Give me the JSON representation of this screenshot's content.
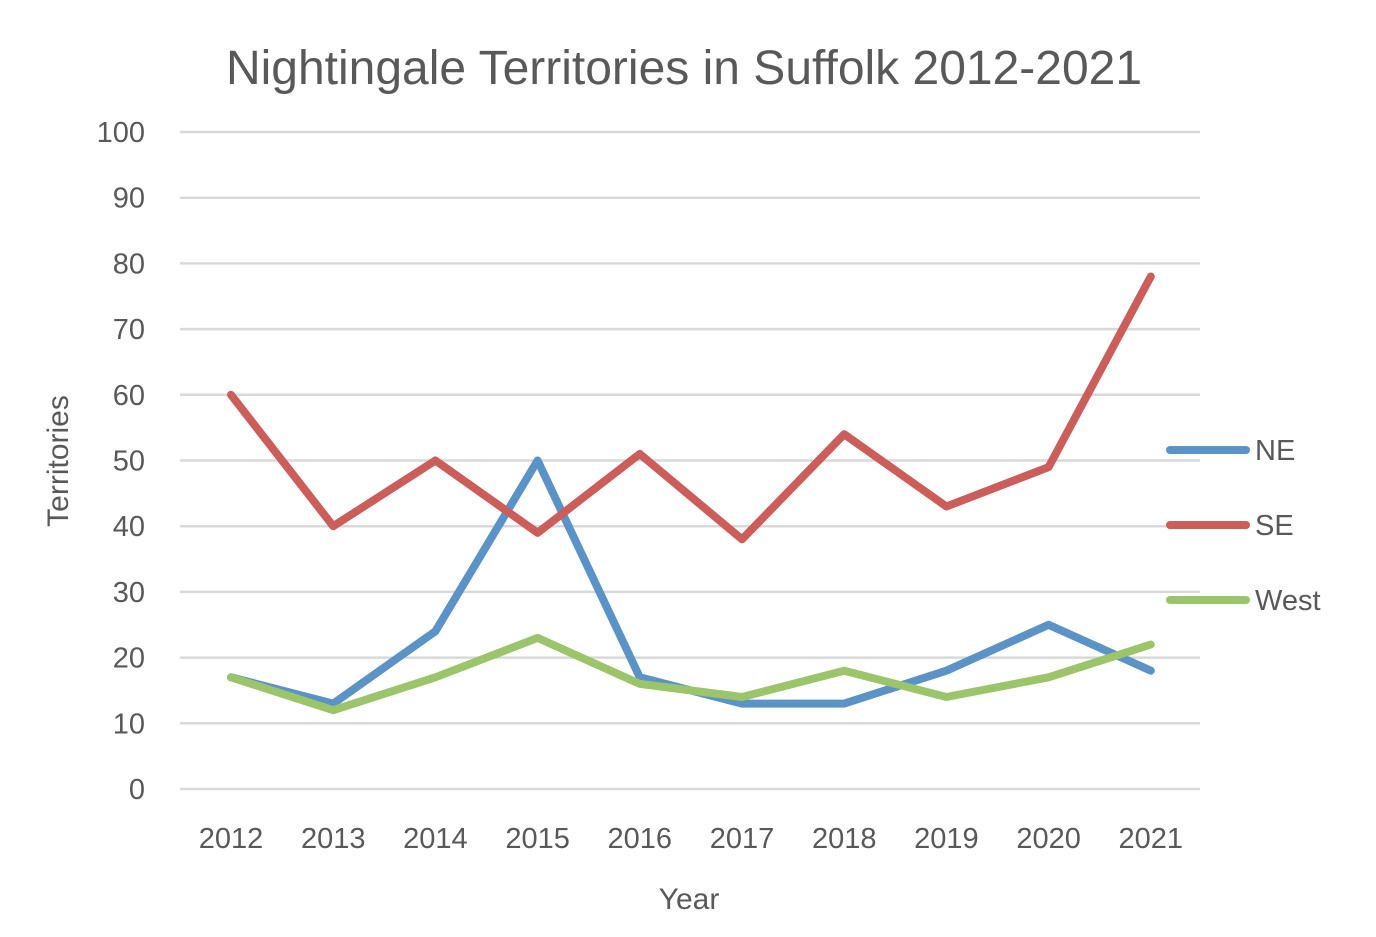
{
  "chart_data": {
    "type": "line",
    "title": "Nightingale Territories in Suffolk 2012-2021",
    "xlabel": "Year",
    "ylabel": "Territories",
    "categories": [
      "2012",
      "2013",
      "2014",
      "2015",
      "2016",
      "2017",
      "2018",
      "2019",
      "2020",
      "2021"
    ],
    "ylim": [
      0,
      100
    ],
    "yticks": [
      0,
      10,
      20,
      30,
      40,
      50,
      60,
      70,
      80,
      90,
      100
    ],
    "grid": true,
    "legend_position": "right",
    "series": [
      {
        "name": "NE",
        "color": "#5b93c7",
        "values": [
          17,
          13,
          24,
          50,
          17,
          13,
          13,
          18,
          25,
          18
        ]
      },
      {
        "name": "SE",
        "color": "#cb5e5b",
        "values": [
          60,
          40,
          50,
          39,
          51,
          38,
          54,
          43,
          49,
          78
        ]
      },
      {
        "name": "West",
        "color": "#9cc46a",
        "values": [
          17,
          12,
          17,
          23,
          16,
          14,
          18,
          14,
          17,
          22
        ]
      }
    ]
  }
}
